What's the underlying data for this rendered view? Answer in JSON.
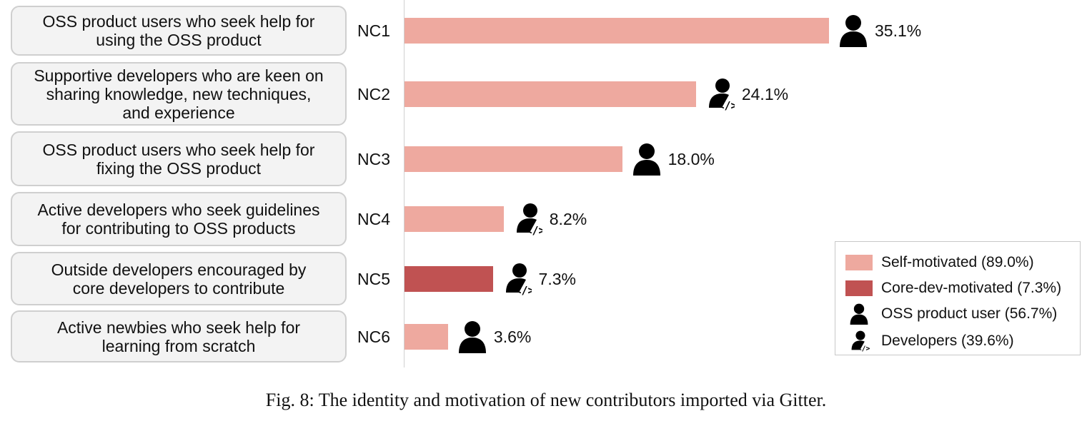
{
  "chart_data": {
    "type": "bar",
    "orientation": "horizontal",
    "categories": [
      "NC1",
      "NC2",
      "NC3",
      "NC4",
      "NC5",
      "NC6"
    ],
    "descriptions": [
      "OSS product users who seek help for\nusing the OSS product",
      "Supportive developers who are keen on\nsharing knowledge, new techniques,\nand experience",
      "OSS product users who seek help for\nfixing the OSS product",
      "Active developers who seek guidelines\nfor contributing to OSS products",
      "Outside developers encouraged by\ncore developers to contribute",
      "Active newbies who seek help for\nlearning from scratch"
    ],
    "values": [
      35.1,
      24.1,
      18.0,
      8.2,
      7.3,
      3.6
    ],
    "value_labels": [
      "35.1%",
      "24.1%",
      "18.0%",
      "8.2%",
      "7.3%",
      "3.6%"
    ],
    "motivation": [
      "self",
      "self",
      "self",
      "self",
      "core",
      "self"
    ],
    "identity": [
      "user",
      "developer",
      "user",
      "developer",
      "developer",
      "user"
    ],
    "xlim": [
      0,
      38
    ],
    "grid": false,
    "legend_position": "bottom-right",
    "colors": {
      "self": "#eea99f",
      "core": "#c05252"
    },
    "legend": [
      {
        "kind": "swatch",
        "key": "self",
        "label": "Self-motivated (89.0%)"
      },
      {
        "kind": "swatch",
        "key": "core",
        "label": "Core-dev-motivated (7.3%)"
      },
      {
        "kind": "icon",
        "icon": "user-icon",
        "label": "OSS product user (56.7%)"
      },
      {
        "kind": "icon",
        "icon": "developer-icon",
        "label": "Developers (39.6%)"
      }
    ]
  },
  "caption": "Fig. 8: The identity and motivation of new contributors imported via Gitter."
}
